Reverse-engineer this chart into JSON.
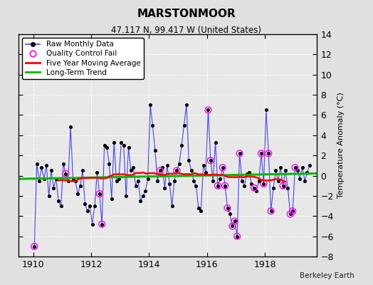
{
  "title": "MARSTONMOOR",
  "subtitle": "47.117 N, 99.417 W (United States)",
  "ylabel": "Temperature Anomaly (°C)",
  "credit": "Berkeley Earth",
  "ylim": [
    -8,
    14
  ],
  "yticks": [
    -8,
    -6,
    -4,
    -2,
    0,
    2,
    4,
    6,
    8,
    10,
    12,
    14
  ],
  "xlim": [
    1909.5,
    1919.8
  ],
  "xticks": [
    1910,
    1912,
    1914,
    1916,
    1918
  ],
  "bg_color": "#e0e0e0",
  "plot_bg_color": "#e8e8e8",
  "raw_line_color": "#4444ff",
  "raw_marker_color": "#000000",
  "qc_fail_color": "#ff00ff",
  "moving_avg_color": "#ff0000",
  "trend_color": "#00bb00",
  "raw_data_x": [
    1910.0417,
    1910.125,
    1910.2083,
    1910.2917,
    1910.375,
    1910.4583,
    1910.5417,
    1910.625,
    1910.7083,
    1910.7917,
    1910.875,
    1910.9583,
    1911.0417,
    1911.125,
    1911.2083,
    1911.2917,
    1911.375,
    1911.4583,
    1911.5417,
    1911.625,
    1911.7083,
    1911.7917,
    1911.875,
    1911.9583,
    1912.0417,
    1912.125,
    1912.2083,
    1912.2917,
    1912.375,
    1912.4583,
    1912.5417,
    1912.625,
    1912.7083,
    1912.7917,
    1912.875,
    1912.9583,
    1913.0417,
    1913.125,
    1913.2083,
    1913.2917,
    1913.375,
    1913.4583,
    1913.5417,
    1913.625,
    1913.7083,
    1913.7917,
    1913.875,
    1913.9583,
    1914.0417,
    1914.125,
    1914.2083,
    1914.2917,
    1914.375,
    1914.4583,
    1914.5417,
    1914.625,
    1914.7083,
    1914.7917,
    1914.875,
    1914.9583,
    1915.0417,
    1915.125,
    1915.2083,
    1915.2917,
    1915.375,
    1915.4583,
    1915.5417,
    1915.625,
    1915.7083,
    1915.7917,
    1915.875,
    1915.9583,
    1916.0417,
    1916.125,
    1916.2083,
    1916.2917,
    1916.375,
    1916.4583,
    1916.5417,
    1916.625,
    1916.7083,
    1916.7917,
    1916.875,
    1916.9583,
    1917.0417,
    1917.125,
    1917.2083,
    1917.2917,
    1917.375,
    1917.4583,
    1917.5417,
    1917.625,
    1917.7083,
    1917.7917,
    1917.875,
    1917.9583,
    1918.0417,
    1918.125,
    1918.2083,
    1918.2917,
    1918.375,
    1918.4583,
    1918.5417,
    1918.625,
    1918.7083,
    1918.7917,
    1918.875,
    1918.9583,
    1919.0417,
    1919.125,
    1919.2083,
    1919.2917,
    1919.375,
    1919.4583,
    1919.5417
  ],
  "raw_data_y": [
    -7.0,
    1.2,
    -0.5,
    0.8,
    -0.3,
    1.0,
    -2.0,
    0.5,
    -1.2,
    -0.3,
    -2.5,
    -3.0,
    1.2,
    0.2,
    -0.5,
    4.8,
    -0.3,
    -0.5,
    -1.8,
    -1.0,
    0.5,
    -2.8,
    -3.5,
    -3.0,
    -4.8,
    -3.0,
    0.3,
    -1.8,
    -4.8,
    3.0,
    2.8,
    1.2,
    -2.3,
    3.3,
    -0.5,
    -0.3,
    3.3,
    3.0,
    -2.0,
    2.8,
    0.5,
    0.8,
    -1.0,
    -0.5,
    -2.5,
    -2.0,
    -1.5,
    -0.3,
    7.0,
    5.0,
    2.5,
    -0.5,
    0.5,
    0.8,
    -1.2,
    1.0,
    -0.8,
    -3.0,
    -0.5,
    0.5,
    1.2,
    3.0,
    5.0,
    7.0,
    1.5,
    0.5,
    -0.5,
    -1.0,
    -3.2,
    -3.5,
    1.0,
    0.3,
    6.5,
    1.5,
    -0.5,
    3.3,
    -1.0,
    -0.3,
    0.8,
    -1.0,
    -3.2,
    -3.8,
    -5.0,
    -4.5,
    -6.0,
    2.2,
    -0.5,
    -1.0,
    0.2,
    0.3,
    -0.8,
    -1.2,
    -1.5,
    -0.5,
    2.2,
    -0.8,
    6.5,
    2.2,
    -3.5,
    -1.2,
    0.5,
    -0.5,
    0.8,
    -1.0,
    0.5,
    -1.2,
    -3.8,
    -3.5,
    0.8,
    0.5,
    -0.3,
    0.8,
    -0.5,
    0.3,
    1.0
  ],
  "qc_fail_indices": [
    0,
    13,
    27,
    28,
    52,
    59,
    72,
    73,
    76,
    78,
    79,
    80,
    82,
    83,
    84,
    85,
    91,
    94,
    95,
    97,
    98,
    103,
    106,
    107,
    108
  ],
  "trend_x": [
    1909.5,
    1919.8
  ],
  "trend_y": [
    -0.32,
    0.22
  ]
}
